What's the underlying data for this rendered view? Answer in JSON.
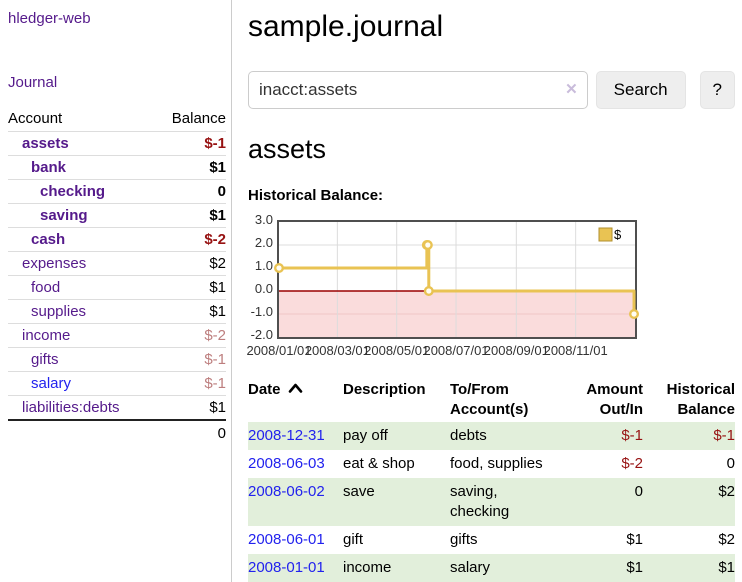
{
  "app": {
    "title": "hledger-web"
  },
  "nav": {
    "journal_label": "Journal"
  },
  "sidebar": {
    "header": {
      "account": "Account",
      "balance": "Balance"
    },
    "accounts": [
      {
        "name": "assets",
        "depth": 1,
        "bold": true,
        "name_style": "purple",
        "balance": "$-1",
        "balance_style": "neg-strong"
      },
      {
        "name": "bank",
        "depth": 2,
        "bold": true,
        "name_style": "purple",
        "balance": "$1",
        "balance_style": "pos-strong"
      },
      {
        "name": "checking",
        "depth": 3,
        "bold": true,
        "name_style": "purple",
        "balance": "0",
        "balance_style": "pos-strong"
      },
      {
        "name": "saving",
        "depth": 3,
        "bold": true,
        "name_style": "purple",
        "balance": "$1",
        "balance_style": "pos-strong"
      },
      {
        "name": "cash",
        "depth": 2,
        "bold": true,
        "name_style": "purple",
        "balance": "$-2",
        "balance_style": "neg-strong"
      },
      {
        "name": "expenses",
        "depth": 1,
        "bold": false,
        "name_style": "purple",
        "balance": "$2",
        "balance_style": "pos"
      },
      {
        "name": "food",
        "depth": 2,
        "bold": false,
        "name_style": "purple",
        "balance": "$1",
        "balance_style": "pos"
      },
      {
        "name": "supplies",
        "depth": 2,
        "bold": false,
        "name_style": "purple",
        "balance": "$1",
        "balance_style": "pos"
      },
      {
        "name": "income",
        "depth": 1,
        "bold": false,
        "name_style": "purple",
        "balance": "$-2",
        "balance_style": "neg-dim"
      },
      {
        "name": "gifts",
        "depth": 2,
        "bold": false,
        "name_style": "purple",
        "balance": "$-1",
        "balance_style": "neg-dim"
      },
      {
        "name": "salary",
        "depth": 2,
        "bold": false,
        "name_style": "blue",
        "balance": "$-1",
        "balance_style": "neg-dim"
      },
      {
        "name": "liabilities:debts",
        "depth": 1,
        "bold": false,
        "name_style": "purple",
        "balance": "$1",
        "balance_style": "pos"
      }
    ],
    "total": "0"
  },
  "main": {
    "title": "sample.journal",
    "search": {
      "value": "inacct:assets",
      "clear_icon": "✕",
      "button_label": "Search",
      "help_label": "?"
    },
    "account_heading": "assets",
    "chart_label": "Historical Balance:"
  },
  "chart_data": {
    "type": "line",
    "style": "step-after",
    "title": "Historical Balance",
    "series": [
      {
        "name": "$",
        "color": "#e9c353",
        "points": [
          [
            "2008-01-01",
            1
          ],
          [
            "2008-06-01",
            2
          ],
          [
            "2008-06-02",
            2
          ],
          [
            "2008-06-03",
            0
          ],
          [
            "2008-12-31",
            -1
          ]
        ]
      }
    ],
    "x_domain": [
      "2008-01-01",
      "2009-01-01"
    ],
    "x_ticks": [
      "2008/01/01",
      "2008/03/01",
      "2008/05/01",
      "2008/07/01",
      "2008/09/01",
      "2008/11/01"
    ],
    "y_ticks": [
      "3.0",
      "2.0",
      "1.0",
      "0.0",
      "-1.0",
      "-2.0"
    ],
    "ylim": [
      -2,
      3
    ],
    "grid": true,
    "grid_color": "#dcdcdc",
    "negative_region_color": "#fadcdc",
    "negative_grid_color": "#f0c6c6",
    "zero_line_color": "#9a0000",
    "marker_fill": "#fffdf4",
    "legend": {
      "label": "$",
      "position": "top-right",
      "swatch_color": "#e9c353",
      "swatch_border": "#b08f2f"
    }
  },
  "transactions": {
    "columns": [
      {
        "l1": "Date",
        "l2": "",
        "sortable": true
      },
      {
        "l1": "Description",
        "l2": ""
      },
      {
        "l1": "To/From",
        "l2": "Account(s)"
      },
      {
        "l1": "Amount",
        "l2": "Out/In",
        "align": "right"
      },
      {
        "l1": "Historical",
        "l2": "Balance",
        "align": "right"
      }
    ],
    "rows": [
      {
        "date": "2008-12-31",
        "description": "pay off",
        "accounts": "debts",
        "amount": "$-1",
        "balance": "$-1",
        "highlight": true
      },
      {
        "date": "2008-06-03",
        "description": "eat & shop",
        "accounts": "food, supplies",
        "amount": "$-2",
        "balance": "0",
        "highlight": false
      },
      {
        "date": "2008-06-02",
        "description": "save",
        "accounts": "saving, checking",
        "amount": "0",
        "balance": "$2",
        "highlight": true
      },
      {
        "date": "2008-06-01",
        "description": "gift",
        "accounts": "gifts",
        "amount": "$1",
        "balance": "$2",
        "highlight": false
      },
      {
        "date": "2008-01-01",
        "description": "income",
        "accounts": "salary",
        "amount": "$1",
        "balance": "$1",
        "highlight": true
      }
    ]
  },
  "colors": {
    "link_purple": "#551a8b",
    "link_blue": "#2222ee",
    "negative_red": "#971212",
    "negative_dim": "#bd7e7e",
    "row_highlight_green": "#e2efdb",
    "chart_gold": "#e9c353"
  }
}
